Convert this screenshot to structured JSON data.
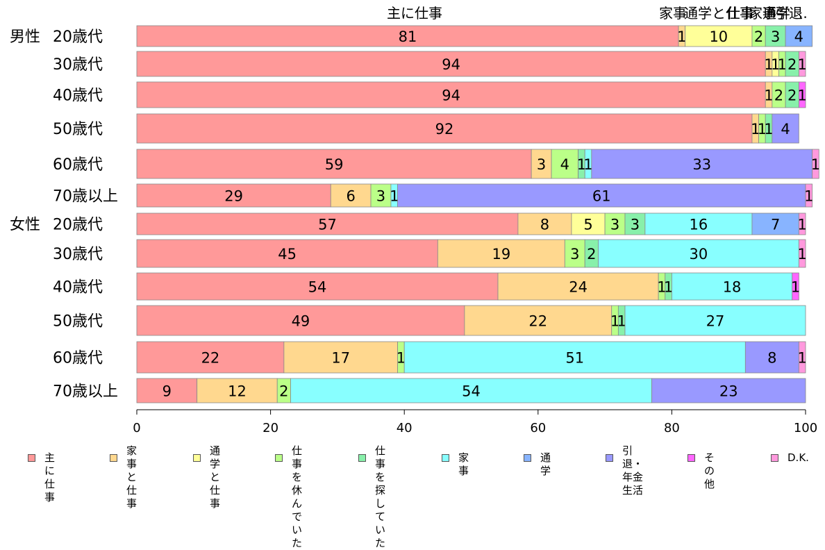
{
  "chart_data": {
    "type": "bar",
    "orientation": "horizontal",
    "stacked": true,
    "groups": [
      {
        "name": "男性",
        "rows": [
          "20歳代",
          "30歳代",
          "40歳代",
          "50歳代",
          "60歳代",
          "70歳以上"
        ]
      },
      {
        "name": "女性",
        "rows": [
          "20歳代",
          "30歳代",
          "40歳代",
          "50歳代",
          "60歳代",
          "70歳以上"
        ]
      }
    ],
    "categories": [
      "20歳代",
      "30歳代",
      "40歳代",
      "50歳代",
      "60歳代",
      "70歳以上",
      "20歳代",
      "30歳代",
      "40歳代",
      "50歳代",
      "60歳代",
      "70歳以上"
    ],
    "series": [
      {
        "name": "主に仕事",
        "legend_label": "主に仕事",
        "color": "#ff9999",
        "values": [
          81,
          94,
          94,
          92,
          59,
          29,
          57,
          45,
          54,
          49,
          22,
          9
        ]
      },
      {
        "name": "家事と仕事",
        "legend_label": "家事と\n仕事",
        "color": "#ffd88f",
        "values": [
          1,
          1,
          1,
          1,
          3,
          6,
          8,
          19,
          24,
          22,
          17,
          12
        ]
      },
      {
        "name": "通学と仕事",
        "legend_label": "通学と\n仕事",
        "color": "#ffff99",
        "values": [
          10,
          1,
          0,
          0,
          0,
          0,
          5,
          0,
          0,
          0,
          0,
          0
        ]
      },
      {
        "name": "仕事を休んでいた",
        "legend_label": "仕事を休\nんでいた",
        "color": "#bbff88",
        "values": [
          2,
          1,
          2,
          1,
          4,
          3,
          3,
          3,
          1,
          1,
          1,
          2
        ]
      },
      {
        "name": "仕事を探していた",
        "legend_label": "仕事を探\nしていた",
        "color": "#88f0aa",
        "values": [
          3,
          2,
          2,
          1,
          1,
          0,
          3,
          2,
          1,
          1,
          0,
          0
        ]
      },
      {
        "name": "家事",
        "legend_label": "家事",
        "color": "#88ffff",
        "values": [
          0,
          0,
          0,
          0,
          1,
          1,
          16,
          30,
          18,
          27,
          51,
          54
        ]
      },
      {
        "name": "通学",
        "legend_label": "通学",
        "color": "#88b4ff",
        "values": [
          4,
          0,
          0,
          0,
          0,
          0,
          7,
          0,
          0,
          0,
          0,
          0
        ]
      },
      {
        "name": "引退・年金生活",
        "legend_label": "引退・\n年金生活",
        "color": "#9999ff",
        "values": [
          0,
          0,
          0,
          4,
          33,
          61,
          0,
          0,
          0,
          0,
          8,
          23
        ]
      },
      {
        "name": "その他",
        "legend_label": "その他",
        "color": "#ff66ff",
        "values": [
          0,
          0,
          1,
          0,
          0,
          0,
          0,
          0,
          1,
          0,
          0,
          0
        ]
      },
      {
        "name": "D.K.",
        "legend_label": "D.K.",
        "color": "#ff99dd",
        "values": [
          0,
          1,
          0,
          0,
          1,
          1,
          1,
          1,
          0,
          0,
          1,
          0
        ]
      }
    ],
    "top_labels": [
      "主に仕事",
      "家事",
      "通学と仕事",
      "仕事",
      "家事",
      "通学",
      "引退"
    ],
    "xlim": [
      0,
      100
    ],
    "xticks": [
      0,
      20,
      40,
      60,
      80,
      100
    ],
    "grid": false,
    "legend_position": "bottom"
  }
}
